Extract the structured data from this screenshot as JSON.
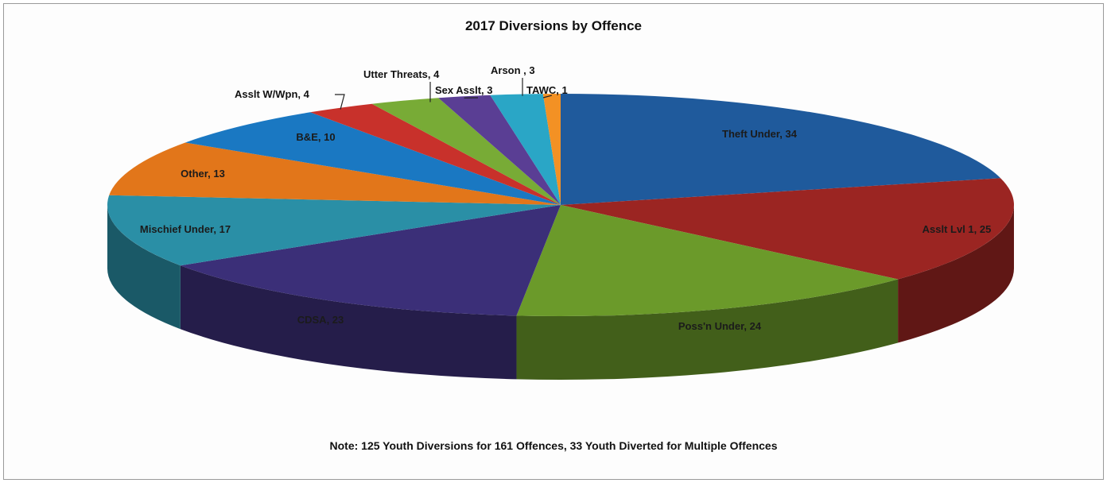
{
  "chart_data": {
    "type": "pie",
    "title": "2017 Diversions by Offence",
    "note": "Note: 125 Youth Diversions for 161 Offences, 33 Youth Diverted for Multiple Offences",
    "slices": [
      {
        "label": "Theft Under, 34",
        "value": 34,
        "color": "#1f5a9c"
      },
      {
        "label": "Asslt Lvl 1, 25",
        "value": 25,
        "color": "#9b2522"
      },
      {
        "label": "Poss'n Under, 24",
        "value": 24,
        "color": "#6b9a2a"
      },
      {
        "label": "CDSA, 23",
        "value": 23,
        "color": "#3b2f78"
      },
      {
        "label": "Mischief Under, 17",
        "value": 17,
        "color": "#2a8fa6"
      },
      {
        "label": "Other, 13",
        "value": 13,
        "color": "#e2761a"
      },
      {
        "label": "B&E, 10",
        "value": 10,
        "color": "#1a78c2"
      },
      {
        "label": "Asslt W/Wpn, 4",
        "value": 4,
        "color": "#c8312b"
      },
      {
        "label": "Utter Threats, 4",
        "value": 4,
        "color": "#78ab36"
      },
      {
        "label": "Sex Asslt, 3",
        "value": 3,
        "color": "#5a3e94"
      },
      {
        "label": "Arson , 3",
        "value": 3,
        "color": "#2aa6c6"
      },
      {
        "label": "TAWC, 1",
        "value": 1,
        "color": "#f39124"
      }
    ],
    "legend": "none",
    "style": "3d-pie"
  }
}
